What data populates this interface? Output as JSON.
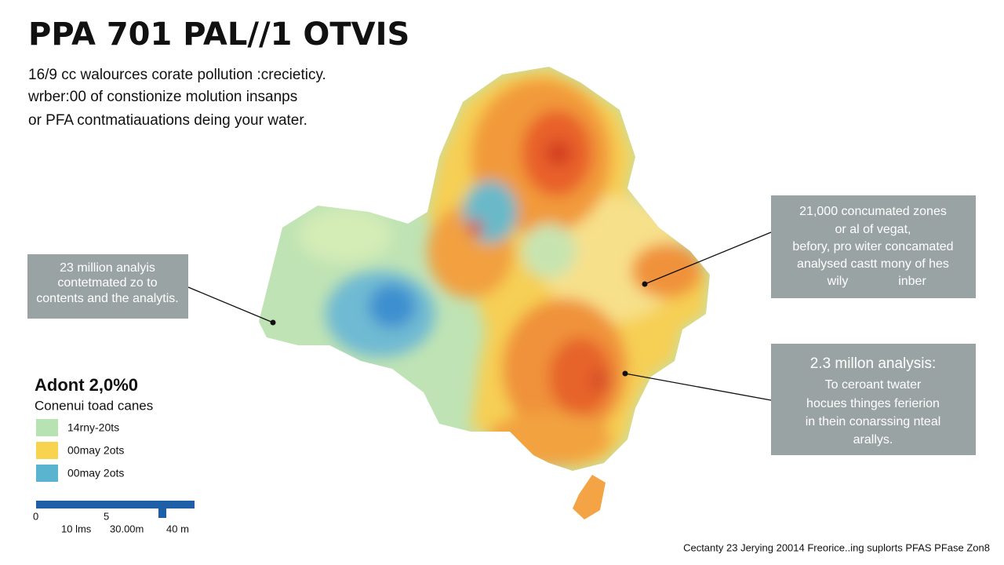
{
  "title": "PPA 701 PAL//1 OTVIS",
  "subtitle_lines": [
    "16/9 cc walources corate pollution :crecieticy.",
    "wrber:00 of constionize molution insanps",
    "or PFA contmatiauations deing your water."
  ],
  "callouts": [
    {
      "lines": [
        "23 million analyis",
        "contetmated zo to",
        "contents and the analytis."
      ]
    },
    {
      "lines": [
        "21,000 concumated zones",
        "or al of vegat,",
        "befory, pro witer concamated",
        "analysed castt mony of hes",
        "wily",
        "inber"
      ]
    },
    {
      "title": "2.3 millon analysis:",
      "lines": [
        "To ceroant twater",
        "hocues thinges ferierion",
        "in thein conarssing nteal",
        "arallys."
      ]
    }
  ],
  "legend": {
    "title": "Adont 2,0%0",
    "subtitle": "Conenui toad canes",
    "items": [
      {
        "label": "14rny-20ts",
        "color": "#b7e2b1"
      },
      {
        "label": "00may 2ots",
        "color": "#f8d350"
      },
      {
        "label": "00may 2ots",
        "color": "#5ab4cf"
      }
    ]
  },
  "scale_bar": {
    "labels": [
      "0",
      "5",
      "10 lms",
      "30.00m",
      "40 m"
    ],
    "color": "#1f5fa8"
  },
  "footer": "Cectanty 23 Jerying 20014 Freorice..ing suplorts PFAS PFase Zon8"
}
